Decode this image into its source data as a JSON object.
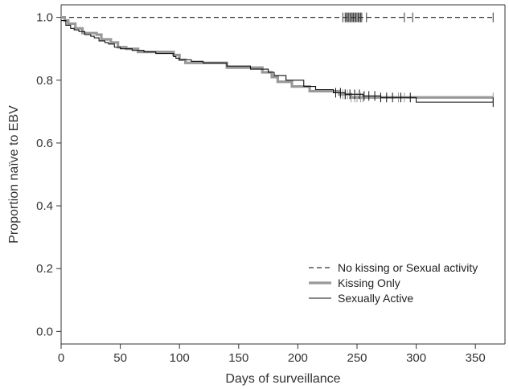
{
  "chart_data": {
    "type": "line",
    "xlabel": "Days of surveillance",
    "ylabel": "Proportion naïve to EBV",
    "xlim": [
      0,
      375
    ],
    "ylim": [
      -0.04,
      1.04
    ],
    "xticks": [
      0,
      50,
      100,
      150,
      200,
      250,
      300,
      350
    ],
    "yticks": [
      0.0,
      0.2,
      0.4,
      0.6,
      0.8,
      1.0
    ],
    "ytick_labels": [
      "0.0",
      "0.2",
      "0.4",
      "0.6",
      "0.8",
      "1.0"
    ],
    "grid": false,
    "legend_position": "bottom-right",
    "series": [
      {
        "name": "No kissing or Sexual activity",
        "style": "dashed",
        "color": "#333333",
        "x": [
          0,
          365
        ],
        "y": [
          1.0,
          1.0
        ],
        "censor_x": [
          238,
          240,
          241,
          242,
          243,
          244,
          245,
          246,
          247,
          248,
          249,
          250,
          251,
          252,
          253,
          254,
          258,
          290,
          297,
          365
        ]
      },
      {
        "name": "Kissing Only",
        "style": "solid-thick",
        "color": "#999999",
        "x": [
          0,
          3,
          6,
          12,
          18,
          24,
          30,
          34,
          42,
          48,
          55,
          65,
          75,
          95,
          100,
          105,
          140,
          145,
          170,
          178,
          183,
          195,
          210,
          235,
          245,
          300,
          365
        ],
        "y": [
          1.0,
          0.99,
          0.98,
          0.965,
          0.95,
          0.95,
          0.945,
          0.93,
          0.92,
          0.905,
          0.9,
          0.89,
          0.89,
          0.88,
          0.865,
          0.855,
          0.84,
          0.84,
          0.825,
          0.81,
          0.795,
          0.78,
          0.765,
          0.755,
          0.745,
          0.745,
          0.745
        ],
        "censor_x": [
          236,
          238,
          240,
          242,
          245,
          248,
          250,
          253,
          255,
          285,
          290,
          365
        ]
      },
      {
        "name": "Sexually Active",
        "style": "solid",
        "color": "#111111",
        "x": [
          0,
          4,
          8,
          11,
          15,
          20,
          25,
          28,
          32,
          37,
          40,
          45,
          50,
          60,
          70,
          80,
          95,
          97,
          100,
          110,
          120,
          140,
          160,
          175,
          180,
          190,
          205,
          215,
          230,
          240,
          255,
          270,
          300,
          365
        ],
        "y": [
          0.99,
          0.975,
          0.965,
          0.96,
          0.955,
          0.945,
          0.94,
          0.935,
          0.925,
          0.92,
          0.915,
          0.905,
          0.9,
          0.895,
          0.89,
          0.885,
          0.875,
          0.87,
          0.865,
          0.86,
          0.855,
          0.845,
          0.835,
          0.825,
          0.815,
          0.8,
          0.78,
          0.77,
          0.76,
          0.755,
          0.75,
          0.745,
          0.73,
          0.73
        ],
        "censor_x": [
          232,
          236,
          240,
          244,
          248,
          252,
          256,
          260,
          265,
          270,
          275,
          280,
          287,
          295,
          365
        ]
      }
    ]
  }
}
